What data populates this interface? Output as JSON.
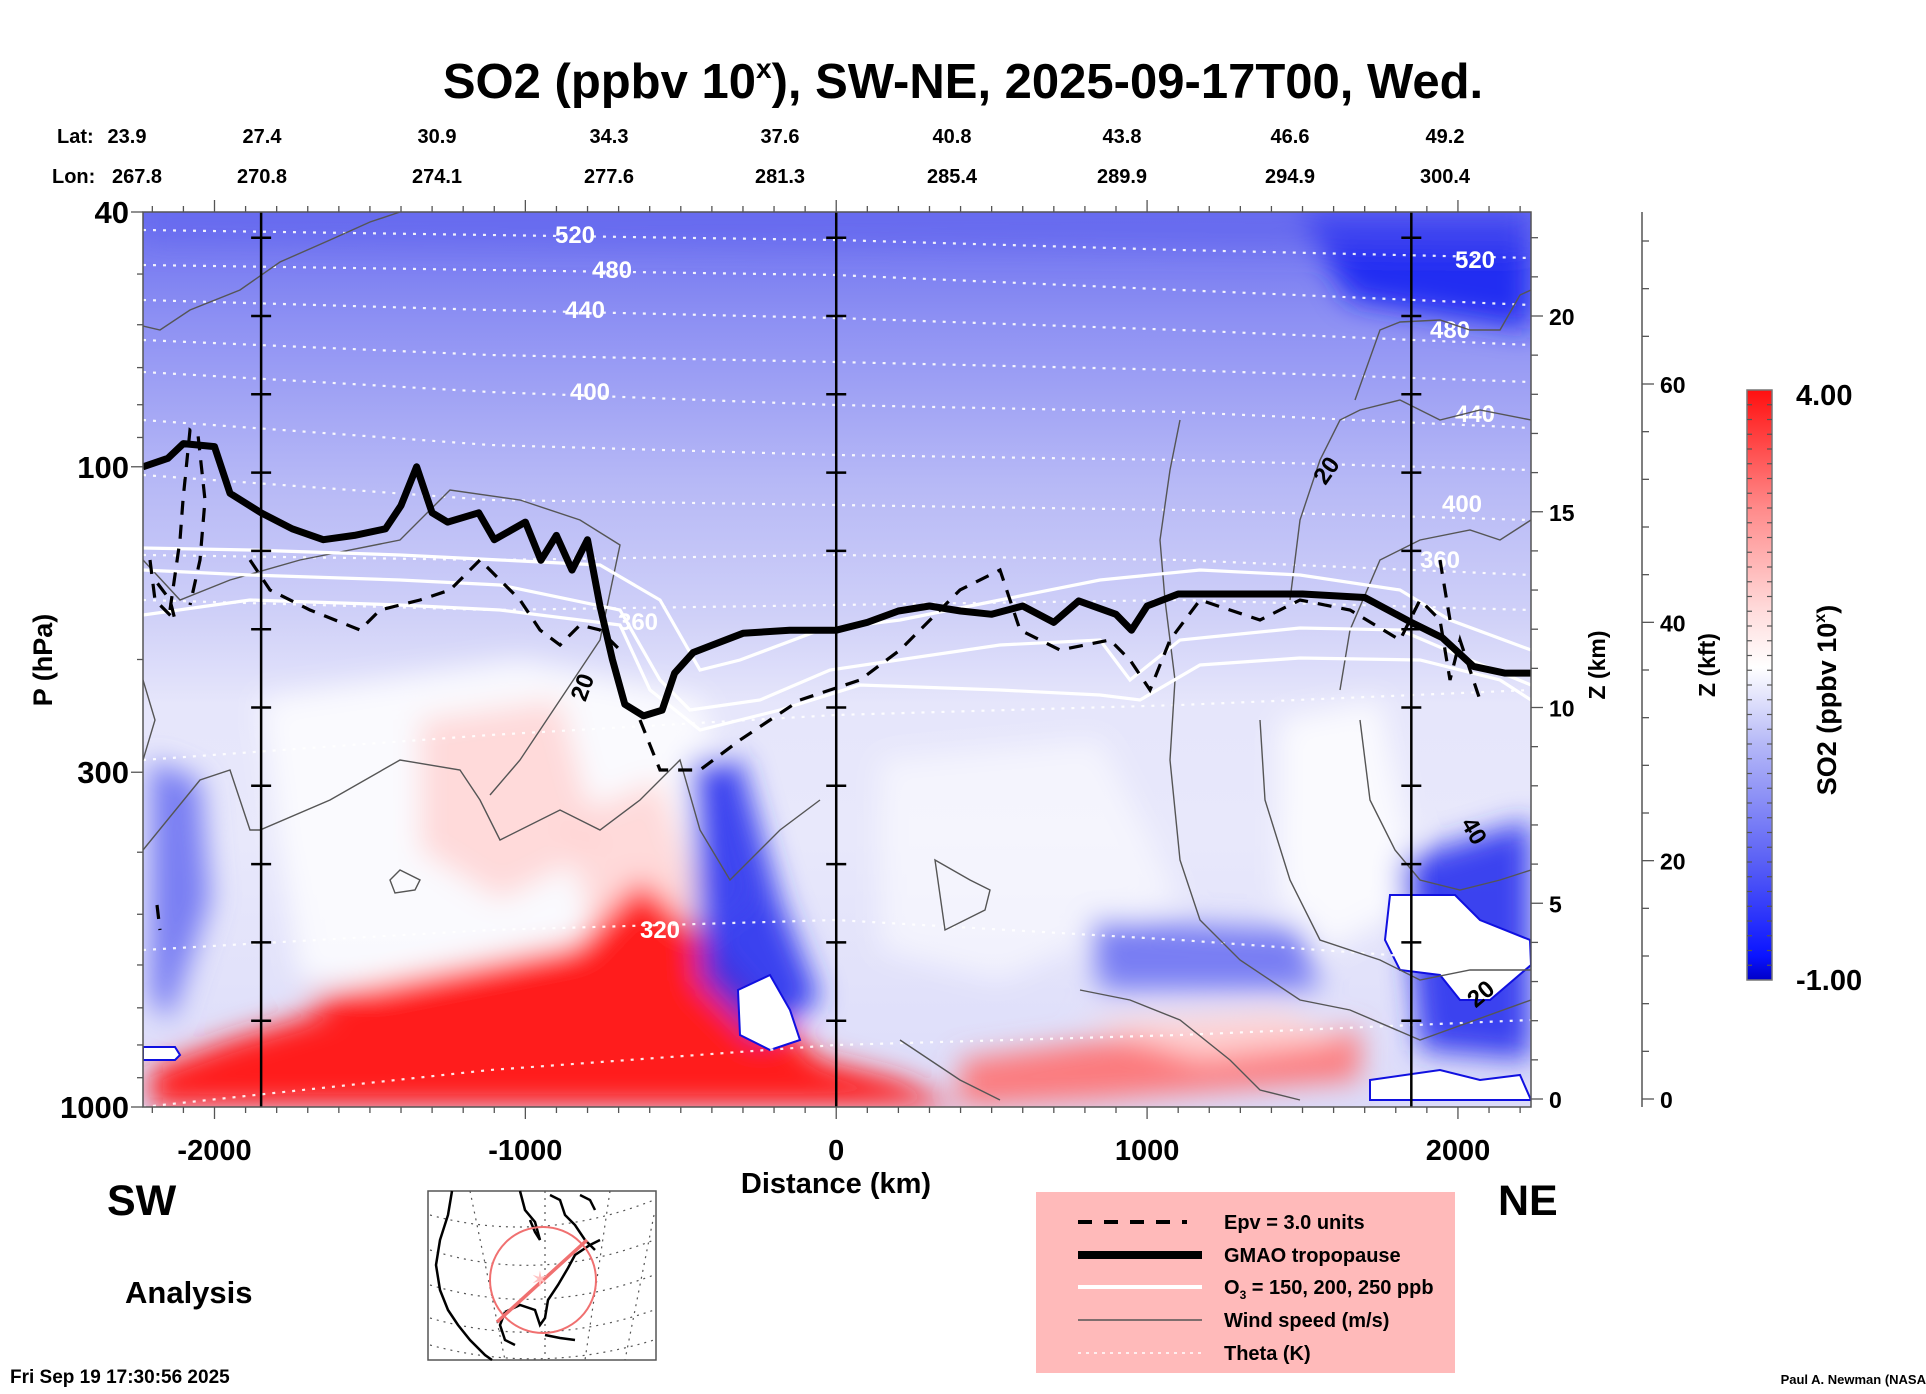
{
  "chart_data": {
    "type": "heatmap",
    "title": "SO2 (ppbv 10",
    "title_superscript": "x",
    "title_suffix": "), SW-NE, 2025-09-17T00, Wed.",
    "xlabel": "Distance (km)",
    "ylabel": "P (hPa)",
    "xlim": [
      -2230,
      2235
    ],
    "ylim_hpa": [
      1000,
      40
    ],
    "y_scale": "log",
    "x_ticks": [
      -2000,
      -1000,
      0,
      1000,
      2000
    ],
    "x_tick_labels": [
      "-2000",
      "-1000",
      "0",
      "1000",
      "2000"
    ],
    "y_ticks": [
      40,
      100,
      300,
      1000
    ],
    "y_tick_labels": [
      "40",
      "100",
      "300",
      "1000"
    ],
    "z_km_axis": {
      "label": "Z (km)",
      "ticks": [
        0,
        5,
        10,
        15,
        20
      ],
      "tick_labels": [
        "0",
        "5",
        "10",
        "15",
        "20"
      ]
    },
    "z_kft_axis": {
      "label": "Z (kft)",
      "ticks": [
        0,
        20,
        40,
        60
      ],
      "tick_labels": [
        "0",
        "20",
        "40",
        "60"
      ]
    },
    "colorbar": {
      "label": "SO2 (ppbv 10",
      "label_superscript": "x",
      "label_suffix": ")",
      "min": -1.0,
      "max": 4.0,
      "min_label": "-1.00",
      "max_label": "4.00",
      "colors": [
        "#0000c8",
        "#ffffff",
        "#ff0000"
      ],
      "n_levels": 40
    },
    "cross_section": {
      "lat_label": "Lat:",
      "lon_label": "Lon:",
      "lat": [
        "23.9",
        "27.4",
        "30.9",
        "34.3",
        "37.6",
        "40.8",
        "43.8",
        "46.6",
        "49.2"
      ],
      "lon": [
        "267.8",
        "270.8",
        "274.1",
        "277.6",
        "281.3",
        "285.4",
        "289.9",
        "294.9",
        "300.4"
      ]
    },
    "vertical_markers_km": [
      -1850,
      0,
      1850
    ],
    "theta_contours": [
      {
        "level": 520,
        "label": "520"
      },
      {
        "level": 480,
        "label": "480"
      },
      {
        "level": 440,
        "label": "440"
      },
      {
        "level": 400,
        "label": "400"
      },
      {
        "level": 360,
        "label": "360"
      },
      {
        "level": 320,
        "label": "320"
      }
    ],
    "wind_contour_labels": [
      "20",
      "20",
      "40",
      "20"
    ],
    "direction_left": "SW",
    "direction_right": "NE",
    "legend": {
      "position": "bottom-center",
      "background": "#ffbaba",
      "items": [
        {
          "label": "Epv = 3.0 units",
          "style": "dashed-black"
        },
        {
          "label": "GMAO tropopause",
          "style": "thick-black"
        },
        {
          "label": "O",
          "sub": "3",
          "label_suffix": " = 150, 200, 250 ppb",
          "style": "white"
        },
        {
          "label": "Wind speed (m/s)",
          "style": "thin-gray"
        },
        {
          "label": "Theta (K)",
          "style": "dotted-white"
        }
      ]
    },
    "tropopause_km": [
      [
        -2230,
        100
      ],
      [
        -2150,
        97
      ],
      [
        -2100,
        92
      ],
      [
        -2000,
        93
      ],
      [
        -1950,
        110
      ],
      [
        -1850,
        118
      ],
      [
        -1750,
        125
      ],
      [
        -1650,
        130
      ],
      [
        -1550,
        128
      ],
      [
        -1450,
        125
      ],
      [
        -1400,
        115
      ],
      [
        -1350,
        100
      ],
      [
        -1300,
        118
      ],
      [
        -1250,
        122
      ],
      [
        -1150,
        118
      ],
      [
        -1100,
        130
      ],
      [
        -1000,
        122
      ],
      [
        -950,
        140
      ],
      [
        -900,
        128
      ],
      [
        -850,
        145
      ],
      [
        -800,
        130
      ],
      [
        -760,
        165
      ],
      [
        -720,
        200
      ],
      [
        -680,
        235
      ],
      [
        -620,
        245
      ],
      [
        -560,
        240
      ],
      [
        -520,
        210
      ],
      [
        -460,
        195
      ],
      [
        -400,
        190
      ],
      [
        -300,
        182
      ],
      [
        -150,
        180
      ],
      [
        0,
        180
      ],
      [
        100,
        175
      ],
      [
        200,
        168
      ],
      [
        300,
        165
      ],
      [
        400,
        168
      ],
      [
        500,
        170
      ],
      [
        600,
        165
      ],
      [
        700,
        175
      ],
      [
        780,
        162
      ],
      [
        900,
        170
      ],
      [
        950,
        180
      ],
      [
        1000,
        165
      ],
      [
        1100,
        158
      ],
      [
        1300,
        158
      ],
      [
        1500,
        158
      ],
      [
        1700,
        160
      ],
      [
        1850,
        175
      ],
      [
        1950,
        185
      ],
      [
        2050,
        205
      ],
      [
        2150,
        210
      ],
      [
        2235,
        210
      ]
    ],
    "analysis_label": "Analysis",
    "timestamp": "Fri Sep 19 17:30:56 2025",
    "credit": "Paul A. Newman (NASA"
  }
}
